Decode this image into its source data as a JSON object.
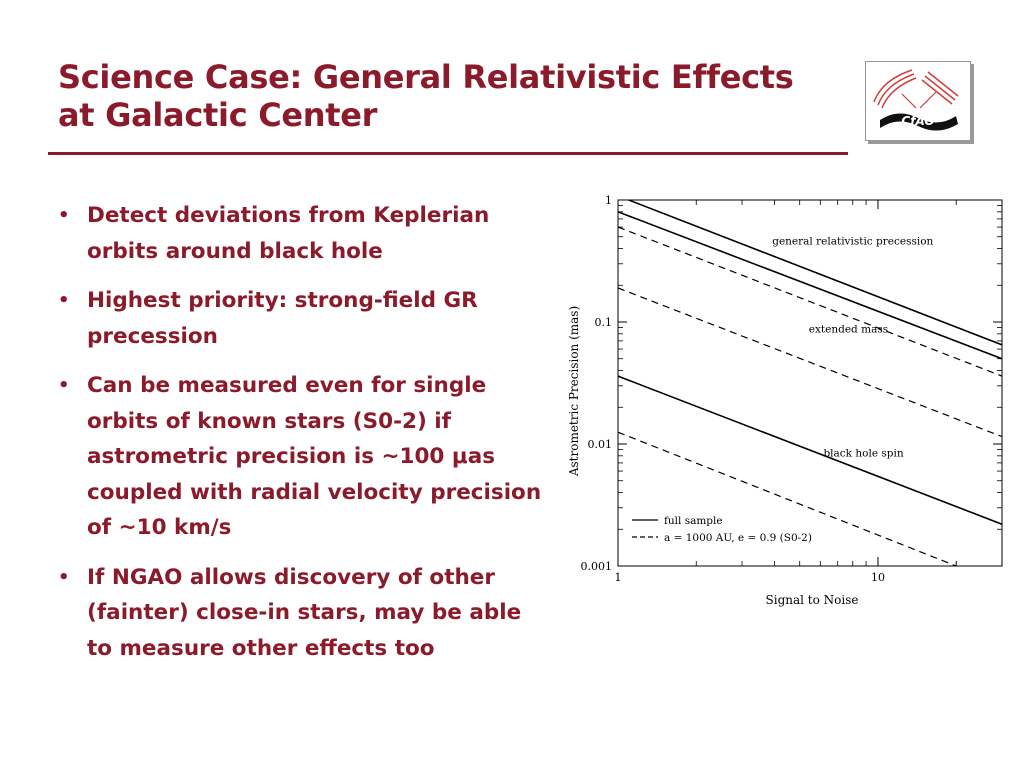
{
  "slide": {
    "title_line1": "Science Case: General Relativistic Effects",
    "title_line2": "at Galactic Center",
    "logo_text": "CfAO",
    "bullets": [
      {
        "text": "Detect deviations from Keplerian orbits around black hole"
      },
      {
        "text": "Highest priority: strong-field GR precession"
      },
      {
        "text": "Can be measured even for single orbits of known stars (S0-2) if astrometric precision is  ~100 μas coupled with radial velocity precision of ~10 km/s"
      },
      {
        "text": "If NGAO allows discovery of other (fainter) close-in stars, may be able to measure other effects too"
      }
    ],
    "colors": {
      "accent": "#8b1a2b",
      "chart_ink": "#000000"
    }
  },
  "chart_data": {
    "type": "line",
    "xlabel": "Signal to Noise",
    "ylabel": "Astrometric Precision (mas)",
    "xscale": "log",
    "yscale": "log",
    "xlim": [
      1,
      30
    ],
    "ylim": [
      0.001,
      1
    ],
    "x_tick_labels": [
      "1",
      "10"
    ],
    "y_tick_labels": [
      "0.001",
      "0.01",
      "0.1",
      "1"
    ],
    "grid": false,
    "legend_position": "bottom-left",
    "legend": [
      {
        "label": "full sample",
        "style": "solid"
      },
      {
        "label": "a = 1000 AU, e = 0.9 (S0-2)",
        "style": "dashed"
      }
    ],
    "annotations": [
      {
        "text": "general relativistic precession",
        "x": 8.0,
        "y": 0.43
      },
      {
        "text": "extended mass",
        "x": 7.7,
        "y": 0.082
      },
      {
        "text": "black hole spin",
        "x": 8.8,
        "y": 0.0079
      }
    ],
    "series": [
      {
        "style": "solid",
        "points": [
          [
            1.1,
            1.0
          ],
          [
            30,
            0.065
          ]
        ]
      },
      {
        "style": "solid",
        "points": [
          [
            1,
            0.8
          ],
          [
            30,
            0.05
          ]
        ]
      },
      {
        "style": "dashed",
        "points": [
          [
            1,
            0.6
          ],
          [
            30,
            0.036
          ]
        ]
      },
      {
        "style": "dashed",
        "points": [
          [
            1,
            0.19
          ],
          [
            30,
            0.0115
          ]
        ]
      },
      {
        "style": "solid",
        "points": [
          [
            1,
            0.036
          ],
          [
            30,
            0.0022
          ]
        ]
      },
      {
        "style": "dashed",
        "points": [
          [
            1,
            0.0125
          ],
          [
            20,
            0.001
          ]
        ]
      }
    ]
  }
}
